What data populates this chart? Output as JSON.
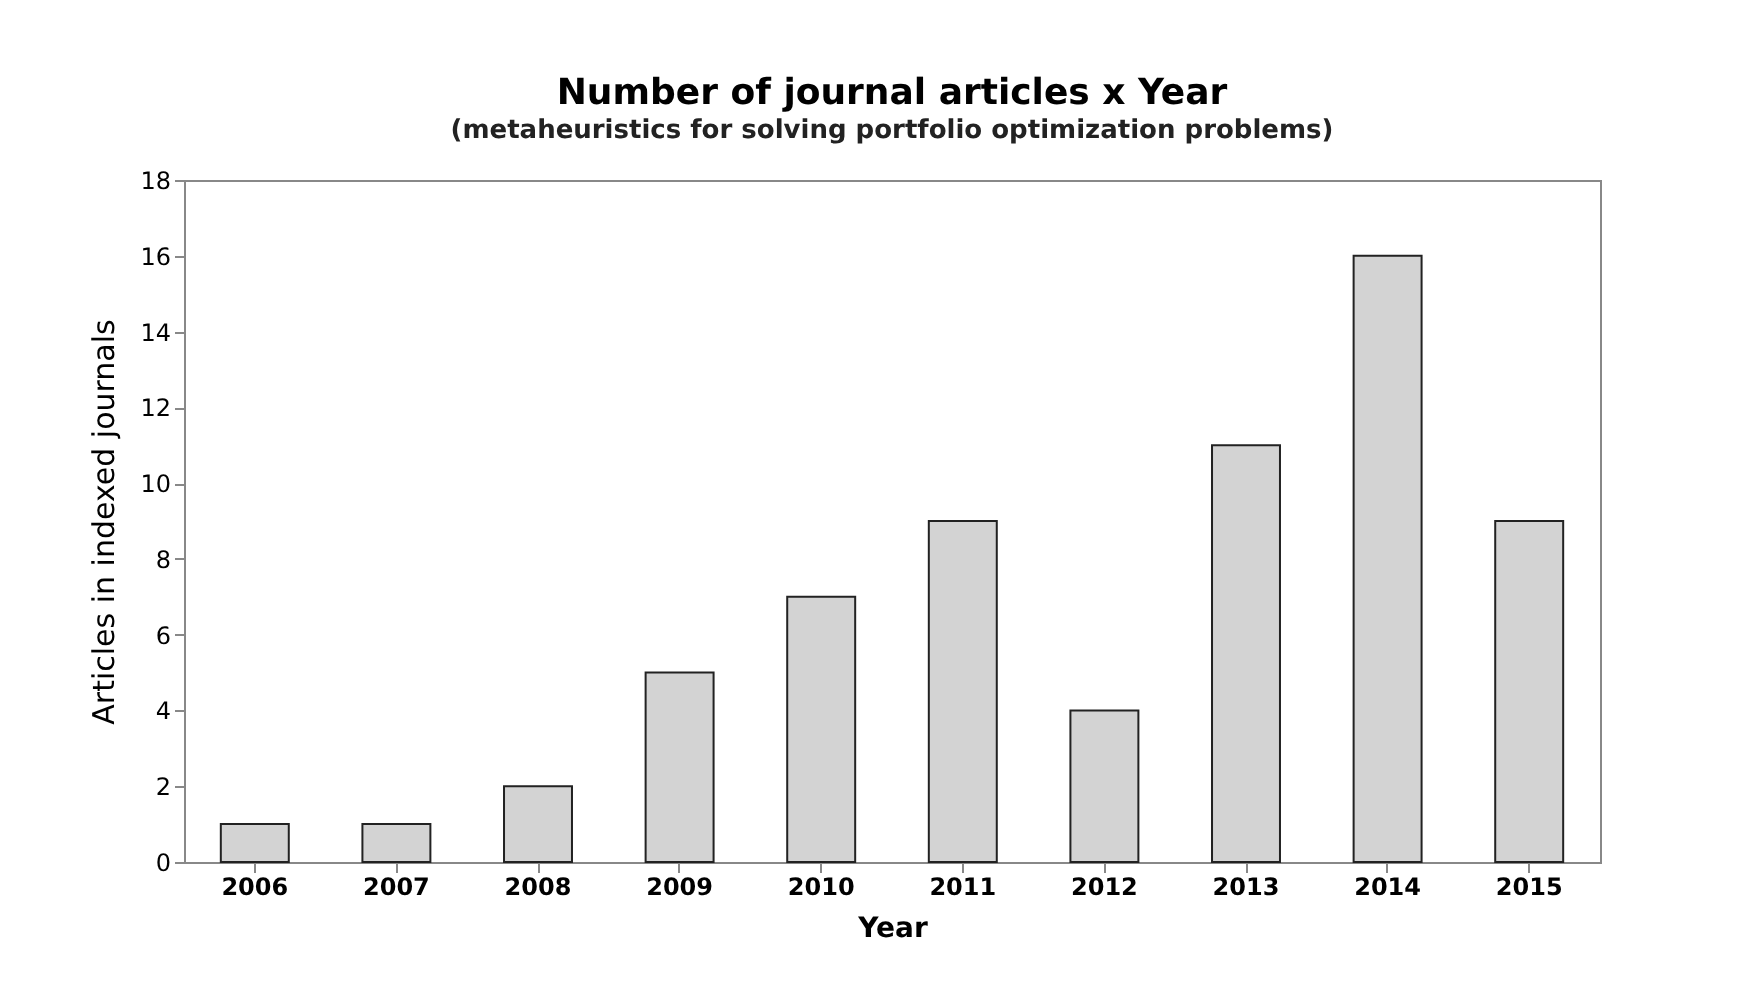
{
  "chart_data": {
    "type": "bar",
    "title": "Number of journal articles x Year",
    "subtitle": "(metaheuristics for solving portfolio optimization problems)",
    "xlabel": "Year",
    "ylabel": "Articles in indexed journals",
    "categories": [
      "2006",
      "2007",
      "2008",
      "2009",
      "2010",
      "2011",
      "2012",
      "2013",
      "2014",
      "2015"
    ],
    "values": [
      1,
      1,
      2,
      5,
      7,
      9,
      4,
      11,
      16,
      9
    ],
    "color": "#d3d3d3",
    "ylim": [
      0,
      18
    ],
    "yticks": [
      0,
      2,
      4,
      6,
      8,
      10,
      12,
      14,
      16,
      18
    ],
    "grid": false
  }
}
